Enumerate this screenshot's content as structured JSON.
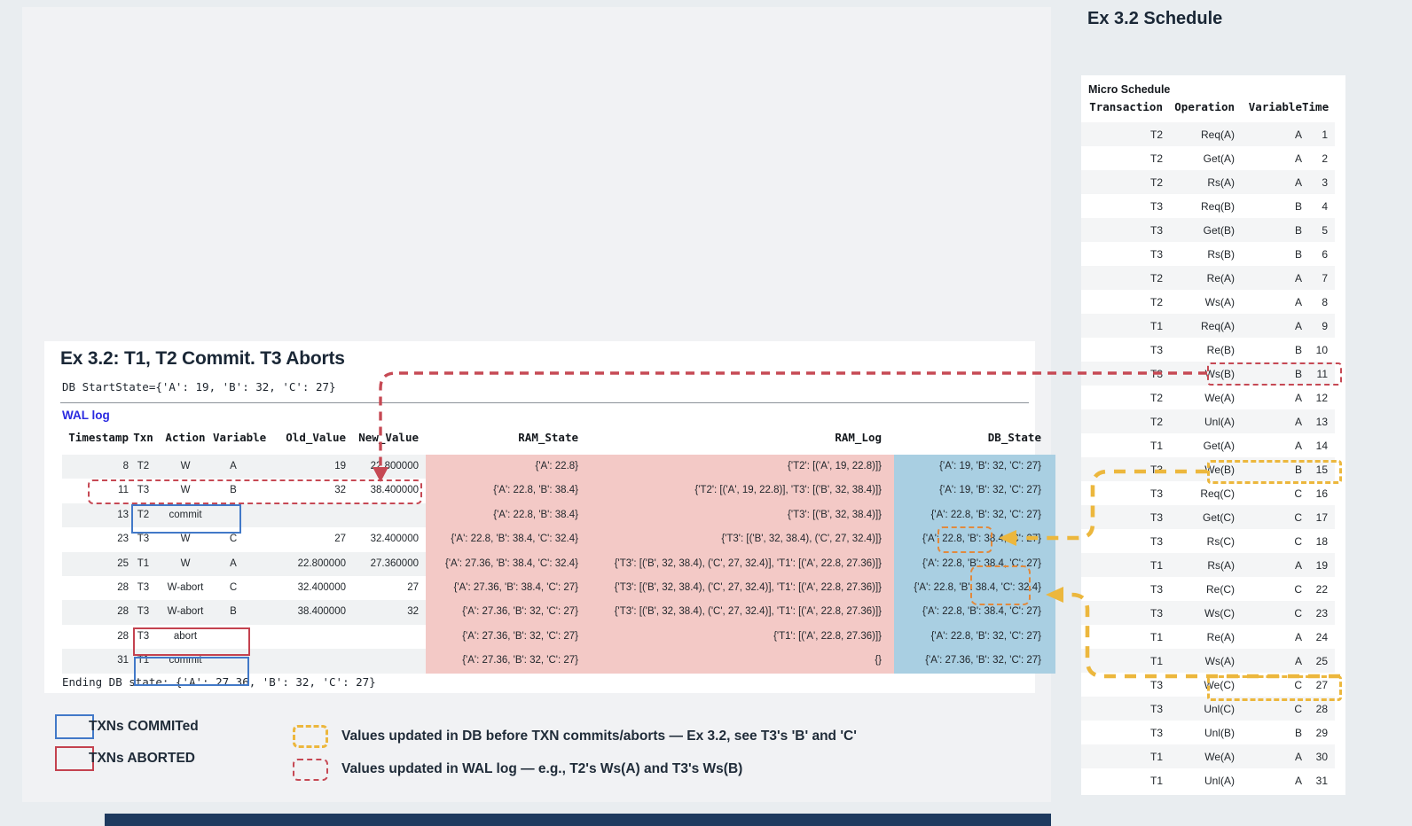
{
  "left_panel": {
    "title": "Ex 3.2: T1, T2 Commit. T3 Aborts",
    "db_start_state": "DB StartState={'A': 19, 'B': 32, 'C': 27}",
    "wal_log_label": "WAL log",
    "table": {
      "columns": [
        "Timestamp",
        "Txn",
        "Action",
        "Variable",
        "Old_Value",
        "New_Value",
        "RAM_State",
        "RAM_Log",
        "DB_State"
      ],
      "rows": [
        [
          "8",
          "T2",
          "W",
          "A",
          "19",
          "22.800000",
          "{'A': 22.8}",
          "{'T2': [('A', 19, 22.8)]}",
          "{'A': 19, 'B': 32, 'C': 27}"
        ],
        [
          "11",
          "T3",
          "W",
          "B",
          "32",
          "38.400000",
          "{'A': 22.8, 'B': 38.4}",
          "{'T2': [('A', 19, 22.8)], 'T3': [('B', 32, 38.4)]}",
          "{'A': 19, 'B': 32, 'C': 27}"
        ],
        [
          "13",
          "T2",
          "commit",
          "",
          "",
          "",
          "{'A': 22.8, 'B': 38.4}",
          "{'T3': [('B', 32, 38.4)]}",
          "{'A': 22.8, 'B': 32, 'C': 27}"
        ],
        [
          "23",
          "T3",
          "W",
          "C",
          "27",
          "32.400000",
          "{'A': 22.8, 'B': 38.4, 'C': 32.4}",
          "{'T3': [('B', 32, 38.4), ('C', 27, 32.4)]}",
          "{'A': 22.8, 'B': 38.4, 'C': 27}"
        ],
        [
          "25",
          "T1",
          "W",
          "A",
          "22.800000",
          "27.360000",
          "{'A': 27.36, 'B': 38.4, 'C': 32.4}",
          "{'T3': [('B', 32, 38.4), ('C', 27, 32.4)], 'T1': [('A', 22.8, 27.36)]}",
          "{'A': 22.8, 'B': 38.4, 'C': 27}"
        ],
        [
          "28",
          "T3",
          "W-abort",
          "C",
          "32.400000",
          "27",
          "{'A': 27.36, 'B': 38.4, 'C': 27}",
          "{'T3': [('B', 32, 38.4), ('C', 27, 32.4)], 'T1': [('A', 22.8, 27.36)]}",
          "{'A': 22.8, 'B': 38.4, 'C': 32.4}"
        ],
        [
          "28",
          "T3",
          "W-abort",
          "B",
          "38.400000",
          "32",
          "{'A': 27.36, 'B': 32, 'C': 27}",
          "{'T3': [('B', 32, 38.4), ('C', 27, 32.4)], 'T1': [('A', 22.8, 27.36)]}",
          "{'A': 22.8, 'B': 38.4, 'C': 27}"
        ],
        [
          "28",
          "T3",
          "abort",
          "",
          "",
          "",
          "{'A': 27.36, 'B': 32, 'C': 27}",
          "{'T1': [('A', 22.8, 27.36)]}",
          "{'A': 22.8, 'B': 32, 'C': 27}"
        ],
        [
          "31",
          "T1",
          "commit",
          "",
          "",
          "",
          "{'A': 27.36, 'B': 32, 'C': 27}",
          "{}",
          "{'A': 27.36, 'B': 32, 'C': 27}"
        ]
      ]
    },
    "ending_db_state": "Ending DB state: {'A': 27.36, 'B': 32, 'C': 27}"
  },
  "right_panel": {
    "title": "Ex 3.2 Schedule",
    "subtitle": "Micro Schedule",
    "columns": [
      "Transaction",
      "Operation",
      "Variable",
      "Time"
    ],
    "rows": [
      [
        "T2",
        "Req(A)",
        "A",
        "1"
      ],
      [
        "T2",
        "Get(A)",
        "A",
        "2"
      ],
      [
        "T2",
        "Rs(A)",
        "A",
        "3"
      ],
      [
        "T3",
        "Req(B)",
        "B",
        "4"
      ],
      [
        "T3",
        "Get(B)",
        "B",
        "5"
      ],
      [
        "T3",
        "Rs(B)",
        "B",
        "6"
      ],
      [
        "T2",
        "Re(A)",
        "A",
        "7"
      ],
      [
        "T2",
        "Ws(A)",
        "A",
        "8"
      ],
      [
        "T1",
        "Req(A)",
        "A",
        "9"
      ],
      [
        "T3",
        "Re(B)",
        "B",
        "10"
      ],
      [
        "T3",
        "Ws(B)",
        "B",
        "11"
      ],
      [
        "T2",
        "We(A)",
        "A",
        "12"
      ],
      [
        "T2",
        "Unl(A)",
        "A",
        "13"
      ],
      [
        "T1",
        "Get(A)",
        "A",
        "14"
      ],
      [
        "T3",
        "We(B)",
        "B",
        "15"
      ],
      [
        "T3",
        "Req(C)",
        "C",
        "16"
      ],
      [
        "T3",
        "Get(C)",
        "C",
        "17"
      ],
      [
        "T3",
        "Rs(C)",
        "C",
        "18"
      ],
      [
        "T1",
        "Rs(A)",
        "A",
        "19"
      ],
      [
        "T3",
        "Re(C)",
        "C",
        "22"
      ],
      [
        "T3",
        "Ws(C)",
        "C",
        "23"
      ],
      [
        "T1",
        "Re(A)",
        "A",
        "24"
      ],
      [
        "T1",
        "Ws(A)",
        "A",
        "25"
      ],
      [
        "T3",
        "We(C)",
        "C",
        "27"
      ],
      [
        "T3",
        "Unl(C)",
        "C",
        "28"
      ],
      [
        "T3",
        "Unl(B)",
        "B",
        "29"
      ],
      [
        "T1",
        "We(A)",
        "A",
        "30"
      ],
      [
        "T1",
        "Unl(A)",
        "A",
        "31"
      ]
    ],
    "highlighted_times": {
      "wal_red_dashed": "11",
      "db_yellow_dashed": [
        "15",
        "27"
      ]
    }
  },
  "legend": {
    "committed": "TXNs COMMITed",
    "aborted": "TXNs ABORTED",
    "db_note": "Values updated in DB before TXN commits/aborts — Ex 3.2, see T3's 'B' and 'C'",
    "wal_note": "Values updated in WAL log — e.g., T2's Ws(A) and T3's Ws(B)"
  },
  "colors": {
    "committed_box": "#4279c8",
    "aborted_box": "#c4424f",
    "wal_dashed": "#c64954",
    "db_dashed_yellow": "#ecb73d",
    "db_value_box_orange": "#e2893c",
    "ram_column_pink": "#f3c9c6",
    "db_column_blue": "#a9cfe2",
    "wal_log_label_blue": "#2a2ae0"
  }
}
